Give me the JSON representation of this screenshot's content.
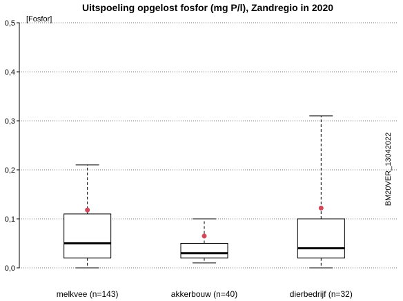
{
  "chart_data": {
    "type": "box",
    "title": "Uitspoeling opgelost fosfor (mg P/l), Zandregio in 2020",
    "ylabel": "[Fosfor]",
    "side_label": "BM20VER_13042022",
    "ylim": [
      0,
      0.5
    ],
    "yticks": [
      0,
      0.1,
      0.2,
      0.3,
      0.4,
      0.5
    ],
    "ytick_labels": [
      "0,0",
      "0,1",
      "0,2",
      "0,3",
      "0,4",
      "0,5"
    ],
    "grid": "horizontal-dotted",
    "categories": [
      "melkvee (n=143)",
      "akkerbouw (n=40)",
      "dierbedrijf (n=32)"
    ],
    "boxes": [
      {
        "whisker_low": 0.0,
        "q1": 0.02,
        "median": 0.05,
        "q3": 0.11,
        "whisker_high": 0.21,
        "mean": 0.118
      },
      {
        "whisker_low": 0.01,
        "q1": 0.02,
        "median": 0.03,
        "q3": 0.05,
        "whisker_high": 0.1,
        "mean": 0.065
      },
      {
        "whisker_low": 0.0,
        "q1": 0.02,
        "median": 0.04,
        "q3": 0.1,
        "whisker_high": 0.31,
        "mean": 0.122
      }
    ],
    "colors": {
      "mean_point": "#d1495b",
      "box_stroke": "#000000",
      "grid": "#777777"
    }
  }
}
